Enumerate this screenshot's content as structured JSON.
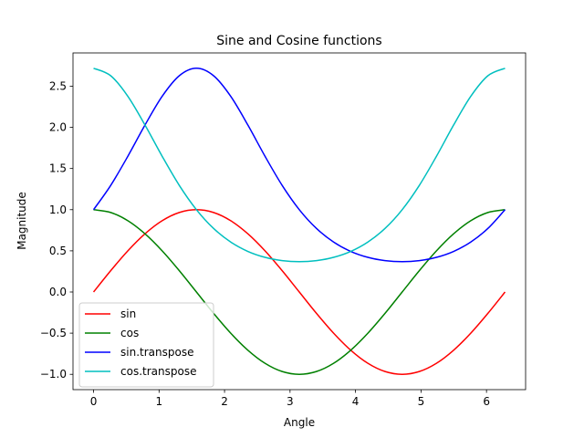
{
  "chart_data": {
    "type": "line",
    "title": "Sine and Cosine functions",
    "xlabel": "Angle",
    "ylabel": "Magnitude",
    "xlim": [
      -0.314,
      6.597
    ],
    "ylim": [
      -1.186,
      2.904
    ],
    "xticks": [
      0,
      1,
      2,
      3,
      4,
      5,
      6
    ],
    "xtick_labels": [
      "0",
      "1",
      "2",
      "3",
      "4",
      "5",
      "6"
    ],
    "yticks": [
      -1.0,
      -0.5,
      0.0,
      0.5,
      1.0,
      1.5,
      2.0,
      2.5
    ],
    "ytick_labels": [
      "−1.0",
      "−0.5",
      "0.0",
      "0.5",
      "1.0",
      "1.5",
      "2.0",
      "2.5"
    ],
    "grid": false,
    "legend_position": "lower-left",
    "x": [
      0,
      0.2618,
      0.5236,
      0.7854,
      1.0472,
      1.309,
      1.5708,
      1.8326,
      2.0944,
      2.3562,
      2.618,
      2.8798,
      3.1416,
      3.4034,
      3.6652,
      3.927,
      4.1888,
      4.4506,
      4.7124,
      4.9742,
      5.236,
      5.4978,
      5.7596,
      6.0214,
      6.2832
    ],
    "series": [
      {
        "name": "sin",
        "color": "#ff0000",
        "values": [
          0,
          0.259,
          0.5,
          0.707,
          0.866,
          0.966,
          1,
          0.966,
          0.866,
          0.707,
          0.5,
          0.259,
          0,
          -0.259,
          -0.5,
          -0.707,
          -0.866,
          -0.966,
          -1,
          -0.966,
          -0.866,
          -0.707,
          -0.5,
          -0.259,
          0
        ]
      },
      {
        "name": "cos",
        "color": "#008000",
        "values": [
          1,
          0.966,
          0.866,
          0.707,
          0.5,
          0.259,
          0,
          -0.259,
          -0.5,
          -0.707,
          -0.866,
          -0.966,
          -1,
          -0.966,
          -0.866,
          -0.707,
          -0.5,
          -0.259,
          0,
          0.259,
          0.5,
          0.707,
          0.866,
          0.966,
          1
        ]
      },
      {
        "name": "sin.transpose",
        "color": "#0000ff",
        "values": [
          1,
          1.295,
          1.649,
          2.028,
          2.377,
          2.627,
          2.718,
          2.627,
          2.377,
          2.028,
          1.649,
          1.295,
          1,
          0.772,
          0.607,
          0.493,
          0.421,
          0.381,
          0.368,
          0.381,
          0.421,
          0.493,
          0.607,
          0.772,
          1
        ]
      },
      {
        "name": "cos.transpose",
        "color": "#00bfbf",
        "values": [
          2.718,
          2.627,
          2.377,
          2.028,
          1.649,
          1.295,
          1,
          0.772,
          0.607,
          0.493,
          0.421,
          0.381,
          0.368,
          0.381,
          0.421,
          0.493,
          0.607,
          0.772,
          1,
          1.295,
          1.649,
          2.028,
          2.377,
          2.627,
          2.718
        ]
      }
    ]
  }
}
